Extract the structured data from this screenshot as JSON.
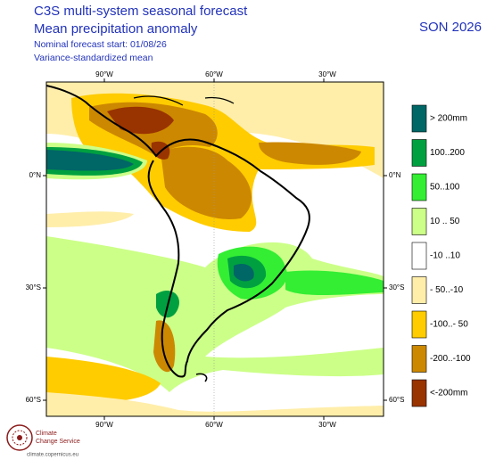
{
  "header": {
    "title_line1": "C3S multi-system seasonal forecast",
    "title_line2": "Mean precipitation anomaly",
    "subtitle_line1": "Nominal forecast start: 01/08/26",
    "subtitle_line2": "Variance-standardized mean",
    "season": "SON 2026"
  },
  "map": {
    "lon_labels": [
      "90°W",
      "60°W",
      "30°W"
    ],
    "lat_labels": [
      "0°N",
      "30°S",
      "60°S"
    ]
  },
  "legend": {
    "items": [
      {
        "label": "> 200mm",
        "color": "#006666"
      },
      {
        "label": "100..200",
        "color": "#00a040"
      },
      {
        "label": "50..100",
        "color": "#33ee33"
      },
      {
        "label": "10 .. 50",
        "color": "#ccff88"
      },
      {
        "label": "-10 ..10",
        "color": "#ffffff"
      },
      {
        "label": "- 50..-10",
        "color": "#ffeeaa"
      },
      {
        "label": "-100..- 50",
        "color": "#ffcc00"
      },
      {
        "label": "-200..-100",
        "color": "#cc8800"
      },
      {
        "label": "<-200mm",
        "color": "#993300"
      }
    ]
  },
  "logo": {
    "line1": "Climate",
    "line2": "Change Service",
    "url": "climate.copernicus.eu"
  }
}
